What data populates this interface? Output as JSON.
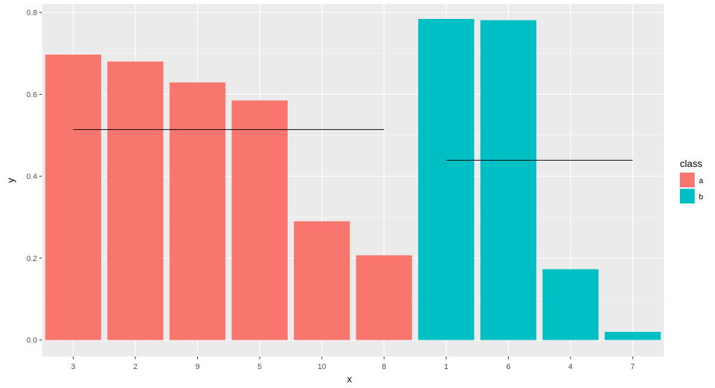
{
  "chart_data": {
    "type": "bar",
    "categories": [
      "3",
      "2",
      "9",
      "5",
      "10",
      "8",
      "1",
      "6",
      "4",
      "7"
    ],
    "values": [
      0.697,
      0.68,
      0.629,
      0.585,
      0.29,
      0.207,
      0.784,
      0.781,
      0.173,
      0.02
    ],
    "classes": [
      "a",
      "a",
      "a",
      "a",
      "a",
      "a",
      "b",
      "b",
      "b",
      "b"
    ],
    "class_colors": {
      "a": "#F8766D",
      "b": "#00BFC4"
    },
    "mean_lines": [
      {
        "class": "a",
        "value": 0.514,
        "from": "3",
        "to": "8"
      },
      {
        "class": "b",
        "value": 0.439,
        "from": "1",
        "to": "7"
      }
    ],
    "xlabel": "x",
    "ylabel": "y",
    "ylim": [
      -0.04,
      0.82
    ],
    "yticks": [
      0.0,
      0.2,
      0.4,
      0.6,
      0.8
    ],
    "ytick_labels": [
      "0.0",
      "0.2",
      "0.4",
      "0.6",
      "0.8"
    ],
    "legend": {
      "title": "class",
      "position": "right",
      "entries": [
        {
          "label": "a",
          "color": "#F8766D"
        },
        {
          "label": "b",
          "color": "#00BFC4"
        }
      ]
    },
    "grid": true,
    "panel_color": "#EBEBEB"
  }
}
